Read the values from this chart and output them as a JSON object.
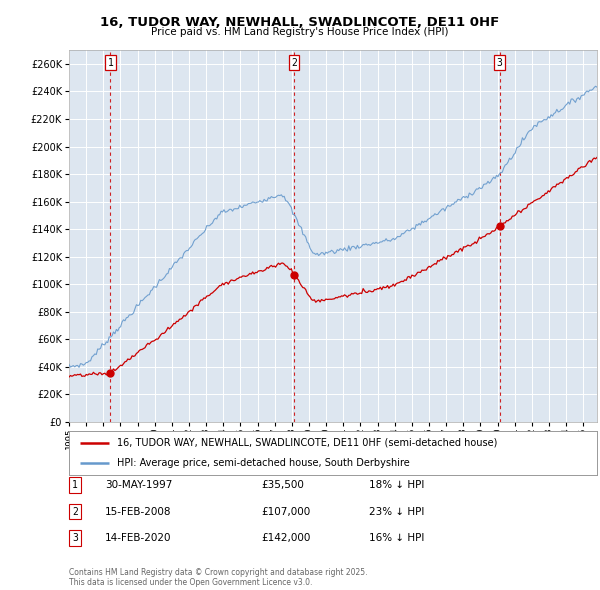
{
  "title": "16, TUDOR WAY, NEWHALL, SWADLINCOTE, DE11 0HF",
  "subtitle": "Price paid vs. HM Land Registry's House Price Index (HPI)",
  "legend_line1": "16, TUDOR WAY, NEWHALL, SWADLINCOTE, DE11 0HF (semi-detached house)",
  "legend_line2": "HPI: Average price, semi-detached house, South Derbyshire",
  "transactions": [
    {
      "num": 1,
      "date_str": "30-MAY-1997",
      "price": 35500,
      "year": 1997.41,
      "pct": "18% ↓ HPI"
    },
    {
      "num": 2,
      "date_str": "15-FEB-2008",
      "price": 107000,
      "year": 2008.12,
      "pct": "23% ↓ HPI"
    },
    {
      "num": 3,
      "date_str": "14-FEB-2020",
      "price": 142000,
      "year": 2020.12,
      "pct": "16% ↓ HPI"
    }
  ],
  "ylabel_ticks": [
    0,
    20000,
    40000,
    60000,
    80000,
    100000,
    120000,
    140000,
    160000,
    180000,
    200000,
    220000,
    240000,
    260000
  ],
  "ylabel_labels": [
    "£0",
    "£20K",
    "£40K",
    "£60K",
    "£80K",
    "£100K",
    "£120K",
    "£140K",
    "£160K",
    "£180K",
    "£200K",
    "£220K",
    "£240K",
    "£260K"
  ],
  "xlim_start": 1995.0,
  "xlim_end": 2025.8,
  "ylim_min": 0,
  "ylim_max": 270000,
  "hpi_color": "#6699cc",
  "price_color": "#cc0000",
  "bg_color": "#dde6f0",
  "grid_color": "#ffffff",
  "vline_color": "#cc0000",
  "footnote": "Contains HM Land Registry data © Crown copyright and database right 2025.\nThis data is licensed under the Open Government Licence v3.0.",
  "xtick_years": [
    1995,
    1996,
    1997,
    1998,
    1999,
    2000,
    2001,
    2002,
    2003,
    2004,
    2005,
    2006,
    2007,
    2008,
    2009,
    2010,
    2011,
    2012,
    2013,
    2014,
    2015,
    2016,
    2017,
    2018,
    2019,
    2020,
    2021,
    2022,
    2023,
    2024,
    2025
  ]
}
